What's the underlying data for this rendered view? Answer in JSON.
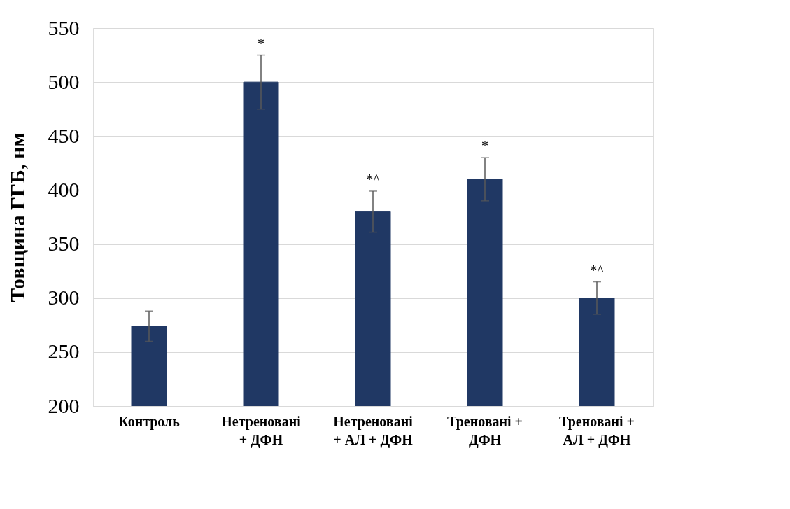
{
  "chart_data": {
    "type": "bar",
    "ylabel": "Товщина  ГГБ, нм",
    "categories": [
      "Контроль",
      "Нетреновані\n+ ДФН",
      "Нетреновані\n+ АЛ + ДФН",
      "Треновані +\nДФН",
      "Треновані +\nАЛ + ДФН"
    ],
    "values": [
      274,
      500,
      380,
      410,
      300
    ],
    "errors": [
      14,
      25,
      19,
      20,
      15
    ],
    "colors": [
      "#203864",
      "#203864",
      "#203864",
      "#203864",
      "#203864"
    ],
    "ylim": [
      200,
      550
    ],
    "yticks": [
      200,
      250,
      300,
      350,
      400,
      450,
      500,
      550
    ],
    "grid": "y",
    "annotations": [
      {
        "text": "*",
        "x": "Нетреновані\n+ ДФН",
        "y": 525
      },
      {
        "text": "*^",
        "x": "Нетреновані\n+ АЛ + ДФН",
        "y": 399
      },
      {
        "text": "*",
        "x": "Треновані +\nДФН",
        "y": 430
      },
      {
        "text": "*^",
        "x": "Треновані +\nАЛ + ДФН",
        "y": 315
      }
    ]
  }
}
